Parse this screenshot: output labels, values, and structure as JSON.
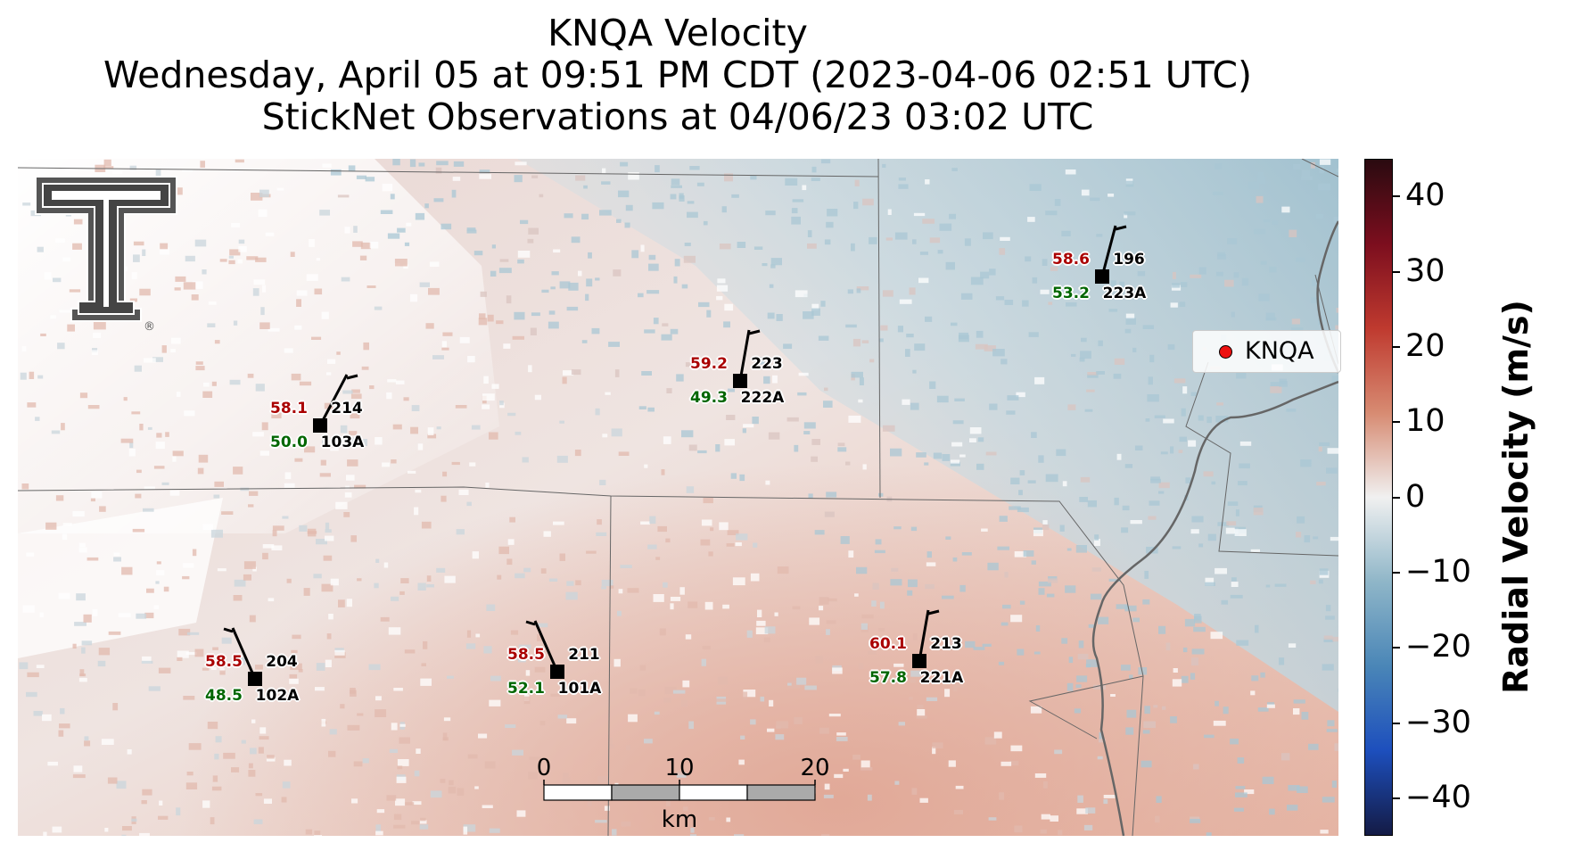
{
  "title": {
    "line1": "KNQA Velocity",
    "line2": "Wednesday, April 05 at 09:51 PM CDT (2023-04-06 02:51 UTC)",
    "line3": "StickNet Observations at 04/06/23 03:02 UTC"
  },
  "legend": {
    "label": "KNQA",
    "marker_color": "#ee1111"
  },
  "colorbar": {
    "label": "Radial Velocity (m/s)",
    "range": [
      -45,
      45
    ],
    "ticks": [
      40,
      30,
      20,
      10,
      0,
      -10,
      -20,
      -30,
      -40
    ],
    "tick_labels": [
      "40",
      "30",
      "20",
      "10",
      "0",
      "−10",
      "−20",
      "−30",
      "−40"
    ],
    "colors": [
      "#2a0a10",
      "#7c0e1e",
      "#bf3a2f",
      "#d78b72",
      "#f0f0f0",
      "#8fb6c8",
      "#4a86b7",
      "#1d4fbd",
      "#141b45"
    ]
  },
  "scale_bar": {
    "ticks": [
      "0",
      "10",
      "20"
    ],
    "unit": "km"
  },
  "logo": {
    "name": "Texas Tech Double T",
    "mark": "®"
  },
  "stations": [
    {
      "id_top": "214",
      "id_bottom": "103A",
      "temp": "58.1",
      "dew": "50.0"
    },
    {
      "id_top": "223",
      "id_bottom": "222A",
      "temp": "59.2",
      "dew": "49.3"
    },
    {
      "id_top": "196",
      "id_bottom": "223A",
      "temp": "58.6",
      "dew": "53.2"
    },
    {
      "id_top": "204",
      "id_bottom": "102A",
      "temp": "58.5",
      "dew": "48.5"
    },
    {
      "id_top": "211",
      "id_bottom": "101A",
      "temp": "58.5",
      "dew": "52.1"
    },
    {
      "id_top": "213",
      "id_bottom": "221A",
      "temp": "60.1",
      "dew": "57.8"
    }
  ]
}
